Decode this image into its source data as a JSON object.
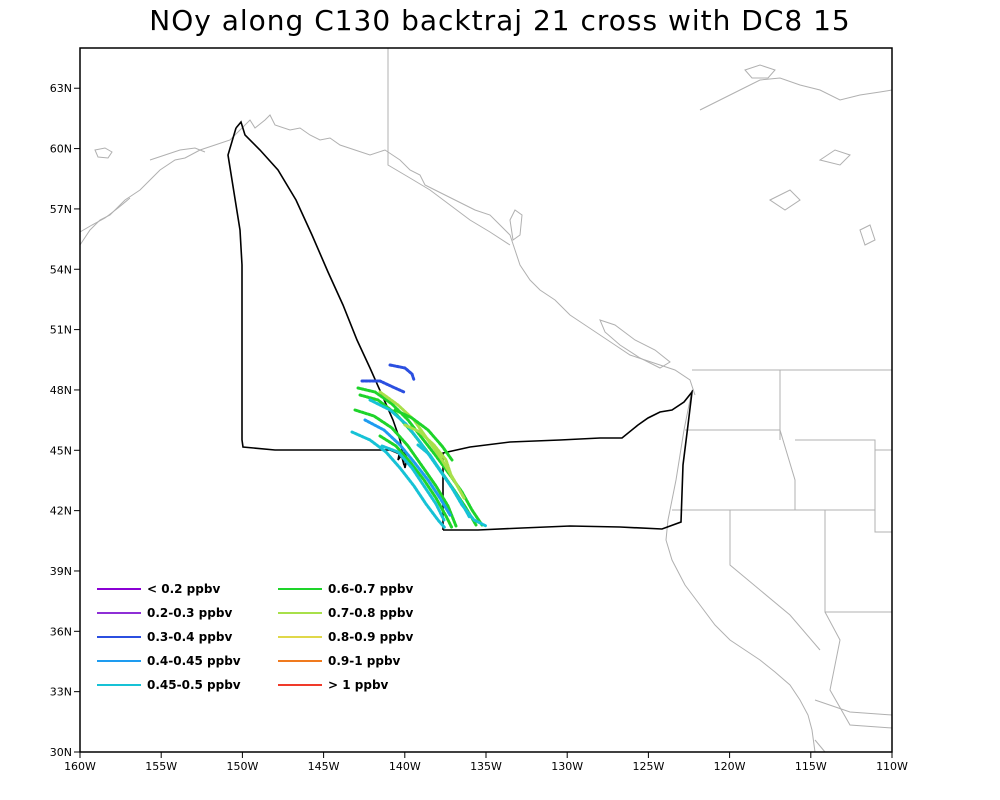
{
  "title": "NOy along C130 backtraj 21 cross with DC8 15",
  "map": {
    "x_ticks": [
      "160W",
      "155W",
      "150W",
      "145W",
      "140W",
      "135W",
      "130W",
      "125W",
      "120W",
      "115W",
      "110W"
    ],
    "y_ticks": [
      "30N",
      "33N",
      "36N",
      "39N",
      "42N",
      "45N",
      "48N",
      "51N",
      "54N",
      "57N",
      "60N",
      "63N"
    ],
    "lon_range": [
      -160,
      -110
    ],
    "lat_range": [
      30,
      65
    ],
    "coastline_color": "#b0b0b0",
    "flight_track_color": "#000000"
  },
  "legend": [
    {
      "label": "< 0.2 ppbv",
      "color": "#8a00d4"
    },
    {
      "label": "0.2-0.3 ppbv",
      "color": "#8e2fd6"
    },
    {
      "label": "0.3-0.4 ppbv",
      "color": "#2b4fe0"
    },
    {
      "label": "0.4-0.45 ppbv",
      "color": "#1e9cf0"
    },
    {
      "label": "0.45-0.5 ppbv",
      "color": "#16c2d6"
    },
    {
      "label": "0.6-0.7 ppbv",
      "color": "#1ed42a"
    },
    {
      "label": "0.7-0.8 ppbv",
      "color": "#a8e04a"
    },
    {
      "label": "0.8-0.9 ppbv",
      "color": "#e0d84a"
    },
    {
      "label": "0.9-1 ppbv",
      "color": "#f07a1e"
    },
    {
      "label": "> 1 ppbv",
      "color": "#f03a2a"
    }
  ]
}
